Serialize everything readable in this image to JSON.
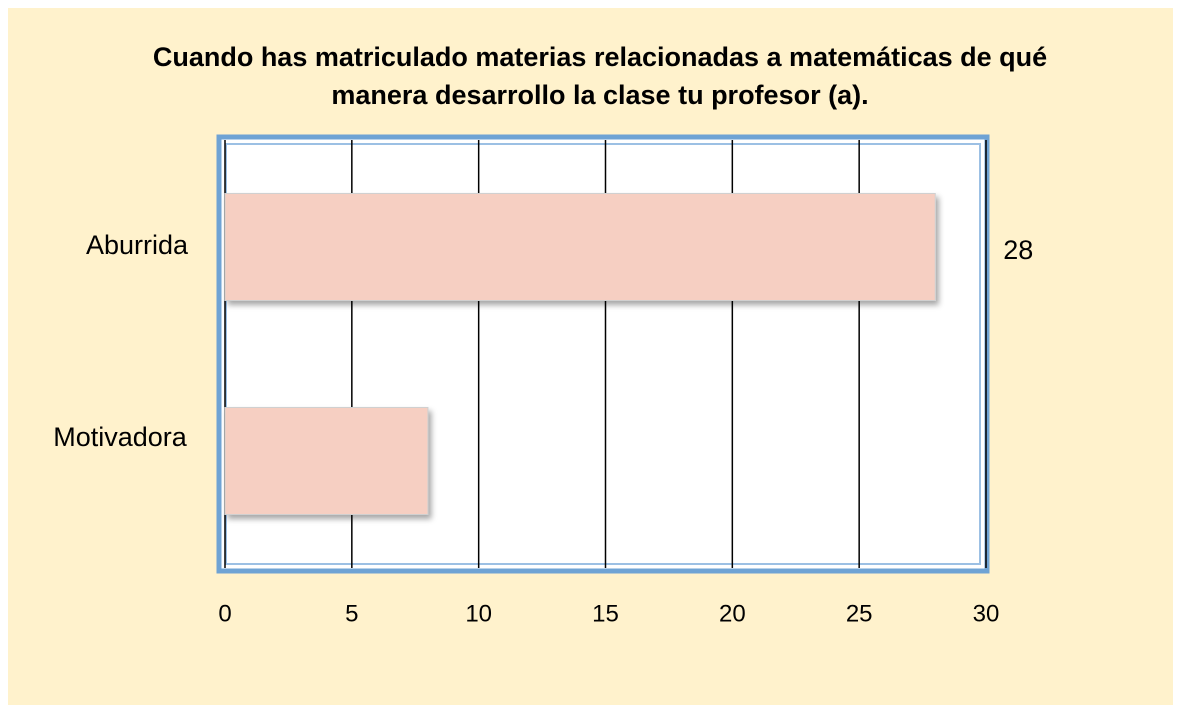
{
  "chart_data": {
    "type": "hbar",
    "title": "Cuando has matriculado materias relacionadas a matemáticas de qué   manera desarrollo la clase tu profesor (a).",
    "categories": [
      "Aburrida",
      "Motivadora"
    ],
    "values": [
      28,
      8
    ],
    "value_labels": [
      "28",
      null
    ],
    "color": "#f6cfc2",
    "xlim": [
      0,
      30
    ],
    "xticks": [
      0,
      5,
      10,
      15,
      20,
      25,
      30
    ],
    "grid": true
  }
}
